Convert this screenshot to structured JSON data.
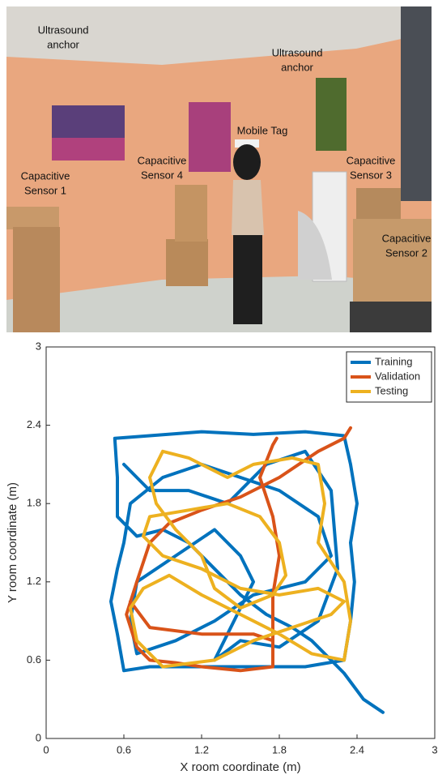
{
  "photo": {
    "labels": [
      {
        "lines": [
          "Ultrasound",
          "anchor"
        ]
      },
      {
        "lines": [
          "Ultrasound",
          "anchor"
        ]
      },
      {
        "lines": [
          "Mobile Tag"
        ]
      },
      {
        "lines": [
          "Capacitive",
          "Sensor 4"
        ]
      },
      {
        "lines": [
          "Capacitive",
          "Sensor 3"
        ]
      },
      {
        "lines": [
          "Capacitive",
          "Sensor 1"
        ]
      },
      {
        "lines": [
          "Capacitive",
          "Sensor 2"
        ]
      }
    ]
  },
  "chart_data": {
    "type": "line",
    "xlabel": "X room coordinate (m)",
    "ylabel": "Y room coordinate (m)",
    "xlim": [
      0,
      3
    ],
    "ylim": [
      0,
      3
    ],
    "xticks": [
      0,
      0.6,
      1.2,
      1.8,
      2.4,
      3
    ],
    "yticks": [
      0,
      0.6,
      1.2,
      1.8,
      2.4,
      3
    ],
    "legend": "top-right",
    "series": [
      {
        "name": "Training",
        "color": "#0072bd",
        "x": [
          2.6,
          2.45,
          2.3,
          2.2,
          2.05,
          1.9,
          1.7,
          1.5,
          1.3,
          1.1,
          0.9,
          0.7,
          0.55,
          0.55,
          0.53,
          0.8,
          1.2,
          1.6,
          2.0,
          2.3,
          2.35,
          2.4,
          2.35,
          2.38,
          2.35,
          2.3,
          2.0,
          1.6,
          1.2,
          0.8,
          0.6,
          0.55,
          0.5,
          0.55,
          0.6,
          0.65,
          0.9,
          1.2,
          1.5,
          1.8,
          2.1,
          2.2,
          2.0,
          1.6,
          1.3,
          1.0,
          0.7,
          0.65,
          0.7,
          1.0,
          1.3,
          1.5,
          1.6,
          1.4,
          1.3,
          1.5,
          1.8,
          2.1,
          2.25,
          2.2,
          2.0,
          1.7,
          1.4,
          1.1,
          0.8,
          0.6
        ],
        "values": [
          0.2,
          0.3,
          0.5,
          0.6,
          0.75,
          0.85,
          0.95,
          1.1,
          1.3,
          1.5,
          1.6,
          1.55,
          1.7,
          2.0,
          2.3,
          2.32,
          2.35,
          2.33,
          2.35,
          2.32,
          2.1,
          1.8,
          1.5,
          1.2,
          0.9,
          0.6,
          0.55,
          0.55,
          0.55,
          0.55,
          0.52,
          0.8,
          1.05,
          1.3,
          1.5,
          1.8,
          2.0,
          2.1,
          2.0,
          1.9,
          1.7,
          1.4,
          1.2,
          1.1,
          0.9,
          0.75,
          0.65,
          0.9,
          1.2,
          1.4,
          1.6,
          1.4,
          1.2,
          0.8,
          0.6,
          0.75,
          0.7,
          0.9,
          1.3,
          1.9,
          2.2,
          2.1,
          1.8,
          1.9,
          1.9,
          2.1
        ]
      },
      {
        "name": "Validation",
        "color": "#d95319",
        "x": [
          2.35,
          2.3,
          2.1,
          1.8,
          1.5,
          1.2,
          0.95,
          0.8,
          0.7,
          0.62,
          0.7,
          0.8,
          1.0,
          1.2,
          1.5,
          1.75,
          1.75,
          1.75,
          1.8,
          1.75,
          1.65,
          1.75,
          1.78,
          null,
          0.65,
          0.8,
          1.2,
          1.6,
          1.75
        ],
        "values": [
          2.38,
          2.3,
          2.2,
          2.0,
          1.85,
          1.75,
          1.65,
          1.5,
          1.2,
          0.95,
          0.7,
          0.6,
          0.58,
          0.55,
          0.52,
          0.55,
          0.8,
          1.1,
          1.4,
          1.7,
          2.0,
          2.25,
          2.3,
          null,
          1.05,
          0.85,
          0.8,
          0.8,
          0.75
        ]
      },
      {
        "name": "Testing",
        "color": "#edb120",
        "x": [
          0.9,
          1.1,
          1.4,
          1.6,
          1.9,
          2.1,
          2.15,
          2.1,
          2.3,
          2.35,
          2.3,
          2.05,
          1.8,
          1.5,
          1.2,
          0.95,
          0.75,
          0.65,
          0.7,
          0.9,
          1.3,
          1.6,
          1.9,
          2.2,
          2.3,
          2.1,
          1.8,
          1.5,
          1.2,
          0.9,
          0.75,
          0.8,
          1.1,
          1.4,
          1.65,
          1.8,
          1.85,
          1.75,
          1.5,
          1.3,
          1.2,
          1.0,
          0.85,
          0.8,
          0.9
        ],
        "values": [
          2.2,
          2.15,
          2.0,
          2.1,
          2.15,
          2.1,
          1.8,
          1.5,
          1.2,
          0.9,
          0.6,
          0.65,
          0.8,
          0.95,
          1.1,
          1.25,
          1.15,
          1.0,
          0.75,
          0.55,
          0.6,
          0.75,
          0.85,
          0.95,
          1.05,
          1.15,
          1.1,
          1.15,
          1.3,
          1.4,
          1.55,
          1.7,
          1.75,
          1.8,
          1.7,
          1.5,
          1.25,
          1.1,
          1.0,
          1.15,
          1.4,
          1.6,
          1.8,
          2.0,
          2.2
        ]
      }
    ]
  }
}
